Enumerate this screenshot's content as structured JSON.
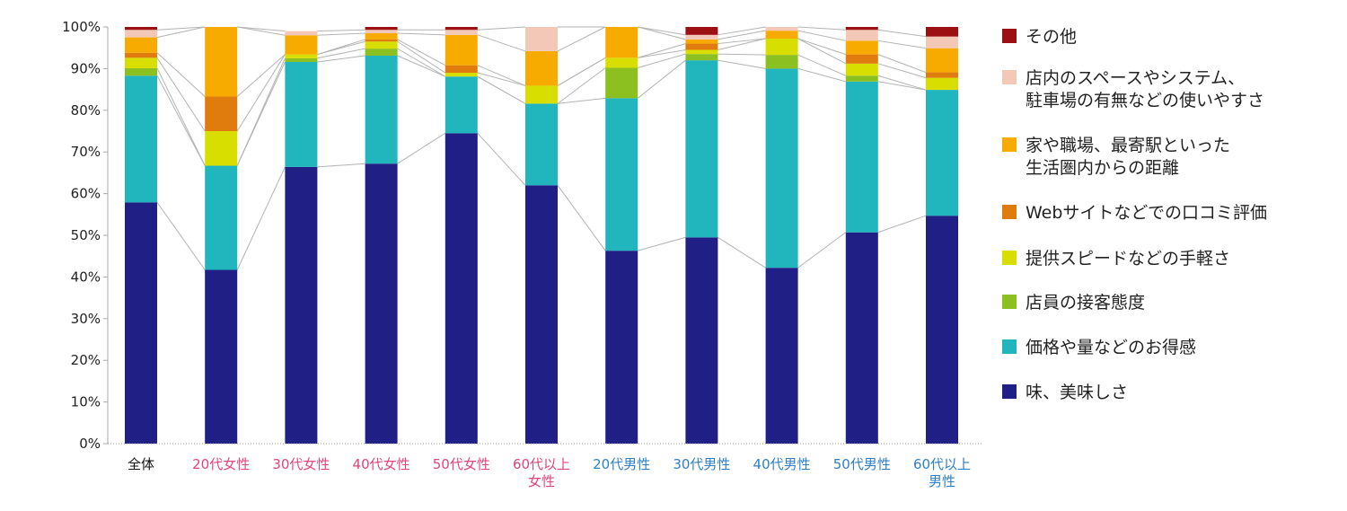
{
  "chart_data": {
    "type": "bar",
    "stacked": true,
    "title": "",
    "xlabel": "",
    "ylabel": "",
    "ylim": [
      0,
      100
    ],
    "yticks": [
      "0%",
      "10%",
      "20%",
      "30%",
      "40%",
      "50%",
      "60%",
      "70%",
      "80%",
      "90%",
      "100%"
    ],
    "grid": false,
    "connector_lines": true,
    "legend_position": "right",
    "categories": [
      {
        "lines": [
          "全体"
        ],
        "color": "#111111"
      },
      {
        "lines": [
          "20代女性"
        ],
        "color": "#e0457b"
      },
      {
        "lines": [
          "30代女性"
        ],
        "color": "#e0457b"
      },
      {
        "lines": [
          "40代女性"
        ],
        "color": "#e0457b"
      },
      {
        "lines": [
          "50代女性"
        ],
        "color": "#e0457b"
      },
      {
        "lines": [
          "60代以上",
          "女性"
        ],
        "color": "#e0457b"
      },
      {
        "lines": [
          "20代男性"
        ],
        "color": "#2e7fc6"
      },
      {
        "lines": [
          "30代男性"
        ],
        "color": "#2e7fc6"
      },
      {
        "lines": [
          "40代男性"
        ],
        "color": "#2e7fc6"
      },
      {
        "lines": [
          "50代男性"
        ],
        "color": "#2e7fc6"
      },
      {
        "lines": [
          "60代以上",
          "男性"
        ],
        "color": "#2e7fc6"
      }
    ],
    "series": [
      {
        "name": "味、美味しさ",
        "legend_lines": [
          "味、美味しさ"
        ],
        "color": "#1f1f85",
        "values": [
          57.9,
          41.7,
          66.4,
          67.2,
          74.5,
          62.0,
          46.3,
          49.5,
          42.2,
          50.7,
          54.7
        ]
      },
      {
        "name": "価格や量などのお得感",
        "legend_lines": [
          "価格や量などのお得感"
        ],
        "color": "#21b5bd",
        "values": [
          30.4,
          25.0,
          25.2,
          25.9,
          13.6,
          19.6,
          36.6,
          42.5,
          47.8,
          36.2,
          30.2
        ]
      },
      {
        "name": "店員の接客態度",
        "legend_lines": [
          "店員の接客態度"
        ],
        "color": "#8cc021",
        "values": [
          1.8,
          0.0,
          0.9,
          1.7,
          0.0,
          0.0,
          7.3,
          1.5,
          3.3,
          1.4,
          0.0
        ]
      },
      {
        "name": "提供スピードなどの手軽さ",
        "legend_lines": [
          "提供スピードなどの手軽さ"
        ],
        "color": "#d8df00",
        "values": [
          2.5,
          8.3,
          0.9,
          1.7,
          0.9,
          4.3,
          2.4,
          1.0,
          3.9,
          2.9,
          2.9
        ]
      },
      {
        "name": "Webサイトなどでの口コミ評価",
        "legend_lines": [
          "Webサイトなどでの口コミ評価"
        ],
        "color": "#e07b0e",
        "values": [
          1.2,
          8.3,
          0.0,
          0.5,
          1.8,
          0.0,
          0.0,
          1.5,
          0.0,
          2.2,
          1.3
        ]
      },
      {
        "name": "家や職場、最寄駅といった生活圏内からの距離",
        "legend_lines": [
          "家や職場、最寄駅といった",
          "生活圏内からの距離"
        ],
        "color": "#f7ab00",
        "values": [
          3.7,
          16.7,
          4.6,
          1.5,
          7.3,
          8.3,
          7.4,
          1.0,
          1.9,
          3.3,
          5.8
        ]
      },
      {
        "name": "店内のスペースやシステム、駐車場の有無などの使いやすさ",
        "legend_lines": [
          "店内のスペースやシステム、",
          "駐車場の有無などの使いやすさ"
        ],
        "color": "#f3c8b6",
        "values": [
          1.8,
          0.0,
          1.0,
          0.8,
          1.2,
          5.8,
          0.0,
          1.1,
          0.9,
          2.6,
          2.8
        ]
      },
      {
        "name": "その他",
        "legend_lines": [
          "その他"
        ],
        "color": "#9c0f12",
        "values": [
          0.7,
          0.0,
          0.0,
          0.7,
          0.7,
          0.0,
          0.0,
          1.9,
          0.0,
          0.7,
          2.3
        ]
      }
    ]
  }
}
